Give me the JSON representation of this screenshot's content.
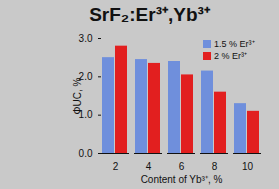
{
  "chart_data": {
    "type": "bar",
    "title": "SrF₂:Er³⁺,Yb³⁺",
    "x_label": "Content of Yb³⁺, %",
    "y_label": "ΦUC, %",
    "categories": [
      2,
      4,
      6,
      8,
      10
    ],
    "series": [
      {
        "name": "1.5 % Er³⁺",
        "color": "#6f8fdc",
        "values": [
          2.5,
          2.45,
          2.4,
          2.15,
          1.3
        ]
      },
      {
        "name": "2 % Er³⁺",
        "color": "#e21f1f",
        "values": [
          2.8,
          2.35,
          2.05,
          1.6,
          1.1
        ]
      }
    ],
    "ylim": [
      0,
      3
    ],
    "yticks": [
      0,
      1,
      2,
      3
    ],
    "grid": false,
    "legend": "top-right"
  }
}
